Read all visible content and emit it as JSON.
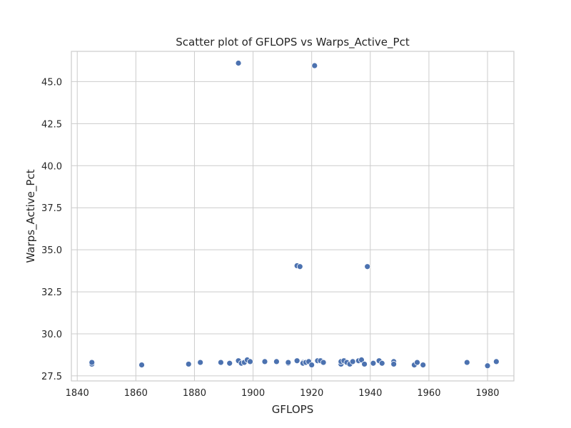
{
  "chart_data": {
    "type": "scatter",
    "title": "Scatter plot of GFLOPS vs Warps_Active_Pct",
    "xlabel": "GFLOPS",
    "ylabel": "Warps_Active_Pct",
    "xlim": [
      1838,
      1989
    ],
    "ylim": [
      27.2,
      46.8
    ],
    "xticks": [
      1840,
      1860,
      1880,
      1900,
      1920,
      1940,
      1960,
      1980
    ],
    "yticks": [
      27.5,
      30.0,
      32.5,
      35.0,
      37.5,
      40.0,
      42.5,
      45.0
    ],
    "ytick_labels": [
      "27.5",
      "30.0",
      "32.5",
      "35.0",
      "37.5",
      "40.0",
      "42.5",
      "45.0"
    ],
    "grid": true,
    "color": "#4c72b0",
    "points": [
      [
        1845,
        28.2
      ],
      [
        1845,
        28.3
      ],
      [
        1862,
        28.15
      ],
      [
        1878,
        28.2
      ],
      [
        1882,
        28.3
      ],
      [
        1889,
        28.3
      ],
      [
        1892,
        28.25
      ],
      [
        1895,
        28.4
      ],
      [
        1895,
        46.1
      ],
      [
        1896,
        28.25
      ],
      [
        1897,
        28.3
      ],
      [
        1898,
        28.45
      ],
      [
        1899,
        28.35
      ],
      [
        1904,
        28.35
      ],
      [
        1908,
        28.35
      ],
      [
        1912,
        28.25
      ],
      [
        1912,
        28.3
      ],
      [
        1915,
        28.4
      ],
      [
        1915,
        34.05
      ],
      [
        1916,
        34.0
      ],
      [
        1917,
        28.3
      ],
      [
        1917,
        28.25
      ],
      [
        1918,
        28.3
      ],
      [
        1919,
        28.35
      ],
      [
        1920,
        28.15
      ],
      [
        1921,
        45.95
      ],
      [
        1922,
        28.4
      ],
      [
        1923,
        28.4
      ],
      [
        1924,
        28.3
      ],
      [
        1930,
        28.2
      ],
      [
        1930,
        28.35
      ],
      [
        1931,
        28.4
      ],
      [
        1932,
        28.3
      ],
      [
        1933,
        28.2
      ],
      [
        1934,
        28.35
      ],
      [
        1936,
        28.4
      ],
      [
        1937,
        28.45
      ],
      [
        1938,
        28.2
      ],
      [
        1939,
        34.0
      ],
      [
        1941,
        28.25
      ],
      [
        1943,
        28.4
      ],
      [
        1944,
        28.25
      ],
      [
        1948,
        28.35
      ],
      [
        1948,
        28.2
      ],
      [
        1955,
        28.15
      ],
      [
        1956,
        28.3
      ],
      [
        1958,
        28.15
      ],
      [
        1973,
        28.3
      ],
      [
        1980,
        28.1
      ],
      [
        1983,
        28.35
      ]
    ]
  }
}
